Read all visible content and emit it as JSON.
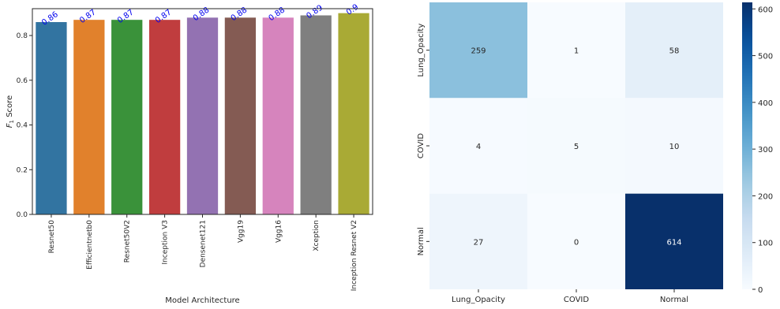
{
  "chart_data": [
    {
      "type": "bar",
      "title": "",
      "xlabel": "Model Architecture",
      "ylabel_main": "F",
      "ylabel_sub": "1",
      "ylabel_rest": " Score",
      "ylim": [
        0,
        0.92
      ],
      "yticks": [
        0.0,
        0.2,
        0.4,
        0.6,
        0.8
      ],
      "ytick_labels": [
        "0.0",
        "0.2",
        "0.4",
        "0.6",
        "0.8"
      ],
      "categories": [
        "Resnet50",
        "Efficientnetb0",
        "Resnet50V2",
        "Inception V3",
        "Densenet121",
        "Vgg19",
        "Vgg16",
        "Xception",
        "Inception Resnet V2"
      ],
      "values": [
        0.86,
        0.87,
        0.87,
        0.87,
        0.88,
        0.88,
        0.88,
        0.89,
        0.9
      ],
      "value_labels": [
        "0.86",
        "0.87",
        "0.87",
        "0.87",
        "0.88",
        "0.88",
        "0.88",
        "0.89",
        "0.9"
      ],
      "colors": [
        "#3274a1",
        "#e1812c",
        "#3a923a",
        "#c03d3e",
        "#9372b2",
        "#845b53",
        "#d684bd",
        "#7f7f7f",
        "#a9aa35"
      ],
      "value_label_color": "#0000ee",
      "grid": false
    },
    {
      "type": "heatmap",
      "title": "",
      "row_labels": [
        "Lung_Opacity",
        "COVID",
        "Normal"
      ],
      "col_labels": [
        "Lung_Opacity",
        "COVID",
        "Normal"
      ],
      "values": [
        [
          259,
          1,
          58
        ],
        [
          4,
          5,
          10
        ],
        [
          27,
          0,
          614
        ]
      ],
      "colormap": "Blues",
      "vmin": 0,
      "vmax": 614,
      "colorbar_ticks": [
        0,
        100,
        200,
        300,
        400,
        500,
        600
      ],
      "colorbar_tick_labels": [
        "0",
        "100",
        "200",
        "300",
        "400",
        "500",
        "600"
      ]
    }
  ]
}
